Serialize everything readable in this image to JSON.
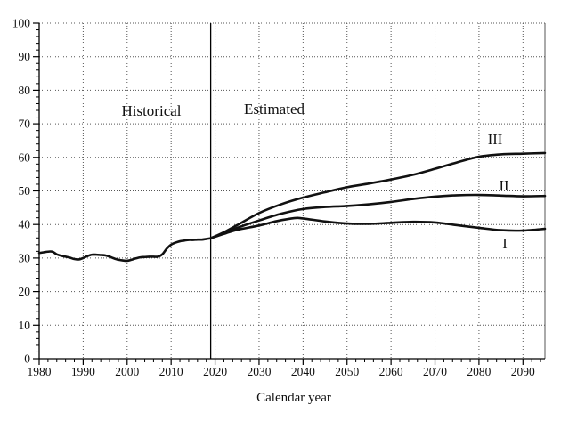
{
  "figure": {
    "background": "#ffffff",
    "line_color": "#111111",
    "grid_color": "#555555",
    "axis_color": "#000000"
  },
  "chart_data": {
    "type": "line",
    "title": "",
    "xlabel": "Calendar year",
    "ylabel": "",
    "xlim": [
      1980,
      2095
    ],
    "ylim": [
      0,
      100
    ],
    "x_major_ticks": [
      1980,
      1990,
      2000,
      2010,
      2020,
      2030,
      2040,
      2050,
      2060,
      2070,
      2080,
      2090
    ],
    "y_major_ticks": [
      0,
      10,
      20,
      30,
      40,
      50,
      60,
      70,
      80,
      90,
      100
    ],
    "x_minor_step": 2,
    "y_minor_step": 2,
    "grid": "dotted at major ticks, both axes",
    "legend": "none",
    "divider_year": 2019,
    "annotations": {
      "historical": "Historical",
      "estimated": "Estimated",
      "alt1": "I",
      "alt2": "II",
      "alt3": "III"
    },
    "series": [
      {
        "name": "Historical",
        "points": [
          [
            1980,
            31.5
          ],
          [
            1981,
            31.7
          ],
          [
            1982,
            31.9
          ],
          [
            1983,
            31.9
          ],
          [
            1984,
            31.1
          ],
          [
            1985,
            30.7
          ],
          [
            1986,
            30.4
          ],
          [
            1987,
            30.1
          ],
          [
            1988,
            29.7
          ],
          [
            1989,
            29.6
          ],
          [
            1990,
            30.0
          ],
          [
            1991,
            30.6
          ],
          [
            1992,
            31.0
          ],
          [
            1993,
            31.0
          ],
          [
            1994,
            30.9
          ],
          [
            1995,
            30.8
          ],
          [
            1996,
            30.4
          ],
          [
            1997,
            29.9
          ],
          [
            1998,
            29.5
          ],
          [
            1999,
            29.3
          ],
          [
            2000,
            29.2
          ],
          [
            2001,
            29.5
          ],
          [
            2002,
            29.9
          ],
          [
            2003,
            30.2
          ],
          [
            2004,
            30.3
          ],
          [
            2005,
            30.4
          ],
          [
            2006,
            30.4
          ],
          [
            2007,
            30.4
          ],
          [
            2008,
            31.1
          ],
          [
            2009,
            32.8
          ],
          [
            2010,
            34.0
          ],
          [
            2011,
            34.6
          ],
          [
            2012,
            35.0
          ],
          [
            2013,
            35.2
          ],
          [
            2014,
            35.4
          ],
          [
            2015,
            35.4
          ],
          [
            2016,
            35.5
          ],
          [
            2017,
            35.5
          ],
          [
            2018,
            35.7
          ],
          [
            2019,
            35.9
          ]
        ]
      },
      {
        "name": "I",
        "points": [
          [
            2019,
            35.9
          ],
          [
            2022,
            37.2
          ],
          [
            2025,
            38.4
          ],
          [
            2030,
            39.7
          ],
          [
            2034,
            41.0
          ],
          [
            2038,
            41.9
          ],
          [
            2040,
            41.8
          ],
          [
            2045,
            40.9
          ],
          [
            2050,
            40.3
          ],
          [
            2055,
            40.2
          ],
          [
            2060,
            40.5
          ],
          [
            2065,
            40.8
          ],
          [
            2070,
            40.6
          ],
          [
            2075,
            39.8
          ],
          [
            2080,
            39.0
          ],
          [
            2085,
            38.3
          ],
          [
            2090,
            38.2
          ],
          [
            2095,
            38.7
          ]
        ]
      },
      {
        "name": "II",
        "points": [
          [
            2019,
            35.9
          ],
          [
            2022,
            37.4
          ],
          [
            2025,
            39.0
          ],
          [
            2030,
            41.2
          ],
          [
            2035,
            43.2
          ],
          [
            2040,
            44.6
          ],
          [
            2045,
            45.2
          ],
          [
            2050,
            45.5
          ],
          [
            2055,
            46.0
          ],
          [
            2060,
            46.7
          ],
          [
            2065,
            47.6
          ],
          [
            2070,
            48.3
          ],
          [
            2075,
            48.7
          ],
          [
            2080,
            48.8
          ],
          [
            2085,
            48.6
          ],
          [
            2090,
            48.4
          ],
          [
            2095,
            48.5
          ]
        ]
      },
      {
        "name": "III",
        "points": [
          [
            2019,
            35.9
          ],
          [
            2022,
            37.7
          ],
          [
            2025,
            39.8
          ],
          [
            2030,
            43.4
          ],
          [
            2035,
            46.0
          ],
          [
            2040,
            48.0
          ],
          [
            2045,
            49.6
          ],
          [
            2050,
            51.1
          ],
          [
            2055,
            52.2
          ],
          [
            2060,
            53.4
          ],
          [
            2065,
            54.8
          ],
          [
            2070,
            56.6
          ],
          [
            2075,
            58.5
          ],
          [
            2080,
            60.2
          ],
          [
            2085,
            60.9
          ],
          [
            2090,
            61.1
          ],
          [
            2095,
            61.3
          ]
        ]
      }
    ]
  }
}
